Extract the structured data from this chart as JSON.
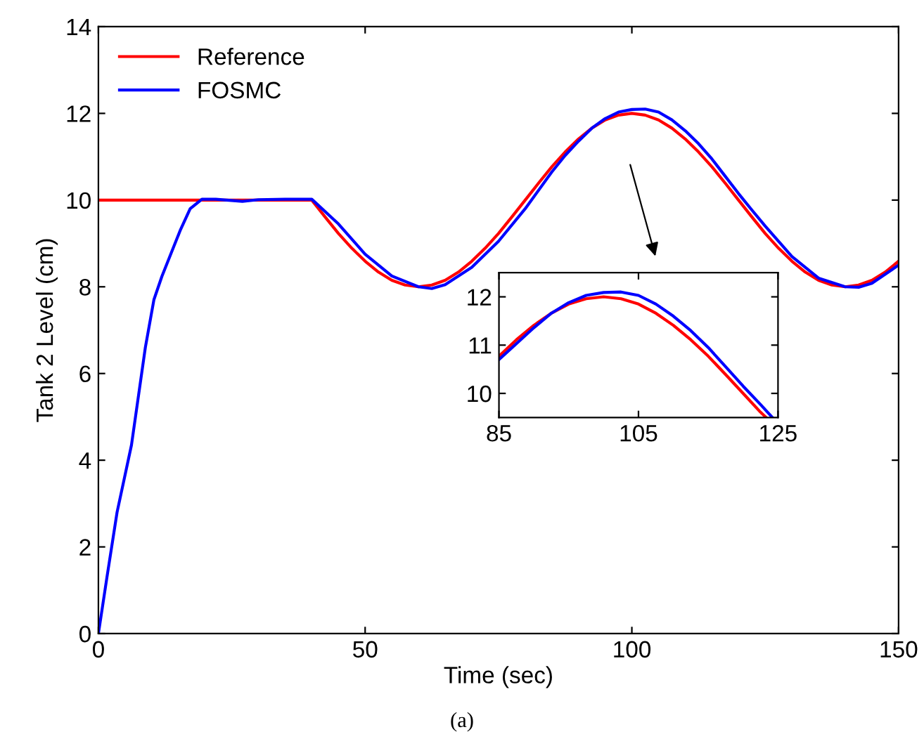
{
  "chart_data": [
    {
      "type": "line",
      "xlabel": "Time (sec)",
      "ylabel": "Tank 2 Level (cm)",
      "annotations": [
        "(a)"
      ],
      "xlim": [
        0,
        150
      ],
      "ylim": [
        0,
        14
      ],
      "xticks": [
        0,
        50,
        100,
        150
      ],
      "yticks": [
        0,
        2,
        4,
        6,
        8,
        10,
        12,
        14
      ],
      "grid": false,
      "legend": "top left",
      "series": [
        {
          "name": "Reference",
          "color": "#ff0000",
          "x": [
            0,
            10,
            20,
            30,
            40,
            42.5,
            45,
            47.5,
            50,
            52.5,
            55,
            57.5,
            60,
            62.5,
            65,
            67.5,
            70,
            72.5,
            75,
            77.5,
            80,
            82.5,
            85,
            87.5,
            90,
            92.5,
            95,
            97.5,
            100,
            102.5,
            105,
            107.5,
            110,
            112.5,
            115,
            117.5,
            120,
            122.5,
            125,
            127.5,
            130,
            132.5,
            135,
            137.5,
            140,
            142.5,
            145,
            147.5,
            150
          ],
          "values": [
            10,
            10,
            10,
            10,
            10,
            9.61,
            9.23,
            8.89,
            8.59,
            8.34,
            8.15,
            8.04,
            8,
            8.04,
            8.15,
            8.34,
            8.59,
            8.89,
            9.23,
            9.61,
            10,
            10.39,
            10.77,
            11.11,
            11.41,
            11.66,
            11.85,
            11.96,
            12,
            11.96,
            11.85,
            11.66,
            11.41,
            11.11,
            10.77,
            10.39,
            10,
            9.61,
            9.23,
            8.89,
            8.59,
            8.34,
            8.15,
            8.04,
            8,
            8.04,
            8.15,
            8.34,
            8.59
          ]
        },
        {
          "name": "FOSMC",
          "color": "#0000ff",
          "x": [
            0,
            1.6,
            3.5,
            6.2,
            8.8,
            10.4,
            11.9,
            15.4,
            17.2,
            19.4,
            22,
            27,
            30,
            35,
            40,
            45,
            50,
            55,
            60,
            62.5,
            65,
            70,
            75,
            80,
            85,
            87.5,
            90,
            92.5,
            95,
            97.5,
            100,
            102.5,
            105,
            107.5,
            110,
            112.5,
            115,
            117.5,
            120,
            122.5,
            125,
            130,
            135,
            140,
            142.5,
            145,
            150
          ],
          "values": [
            0,
            1.3,
            2.8,
            4.35,
            6.6,
            7.7,
            8.24,
            9.32,
            9.8,
            10.02,
            10.02,
            9.97,
            10.01,
            10.02,
            10.02,
            9.45,
            8.75,
            8.25,
            8.0,
            7.96,
            8.05,
            8.45,
            9.05,
            9.8,
            10.65,
            11.03,
            11.36,
            11.66,
            11.88,
            12.03,
            12.09,
            12.1,
            12.03,
            11.85,
            11.6,
            11.3,
            10.95,
            10.55,
            10.15,
            9.77,
            9.4,
            8.7,
            8.2,
            8.0,
            7.99,
            8.08,
            8.5
          ]
        }
      ]
    },
    {
      "type": "line",
      "xlim": [
        85,
        125
      ],
      "ylim": [
        9.5,
        12.5
      ],
      "xticks": [
        85,
        105,
        125
      ],
      "yticks": [
        10,
        11,
        12
      ],
      "grid": false,
      "series": [
        {
          "color": "#ff0000",
          "x": [
            85,
            87.5,
            90,
            92.5,
            95,
            97.5,
            100,
            102.5,
            105,
            107.5,
            110,
            112.5,
            115,
            117.5,
            120,
            122.5,
            123.3
          ],
          "values": [
            10.77,
            11.11,
            11.41,
            11.66,
            11.85,
            11.96,
            12,
            11.96,
            11.85,
            11.66,
            11.41,
            11.11,
            10.77,
            10.39,
            10,
            9.61,
            9.5
          ]
        },
        {
          "color": "#0000ff",
          "x": [
            85,
            87.5,
            90,
            92.5,
            95,
            97.5,
            100,
            102.5,
            105,
            107.5,
            110,
            112.5,
            115,
            117.5,
            120,
            122.5,
            124.2
          ],
          "values": [
            10.7,
            11.03,
            11.36,
            11.66,
            11.88,
            12.03,
            12.09,
            12.1,
            12.03,
            11.85,
            11.6,
            11.3,
            10.95,
            10.55,
            10.15,
            9.77,
            9.5
          ]
        }
      ]
    }
  ]
}
